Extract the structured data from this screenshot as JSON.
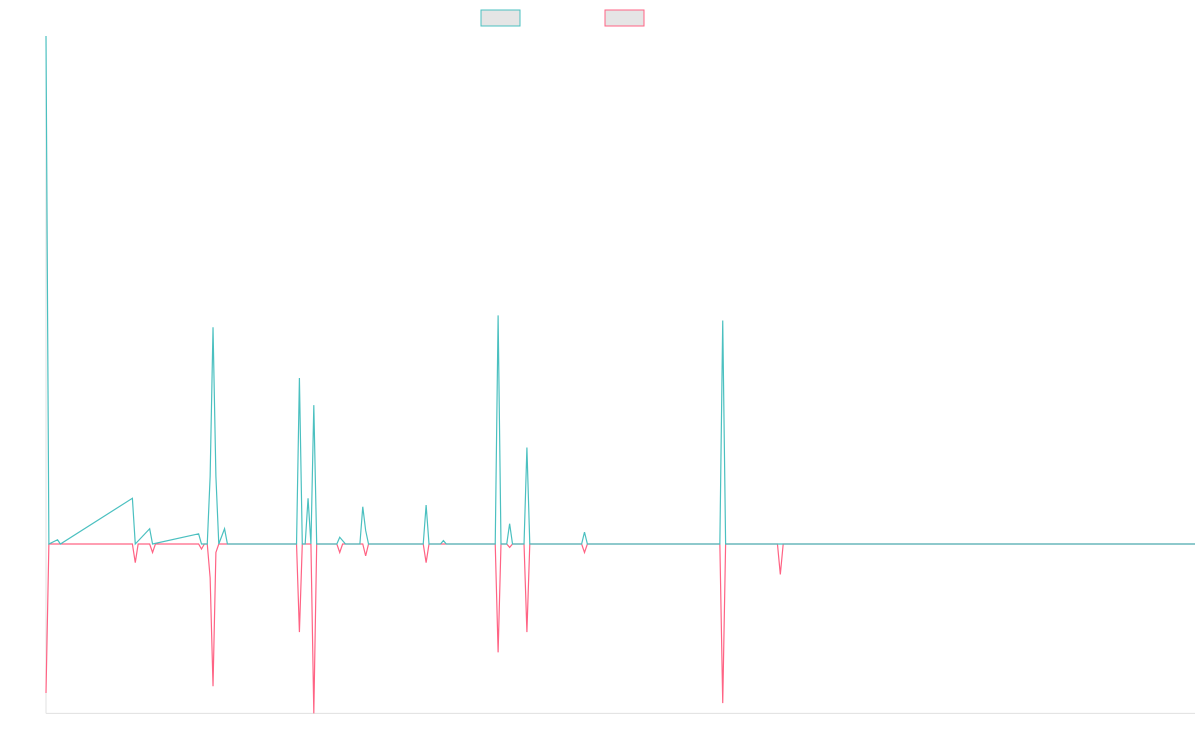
{
  "chart_data": {
    "type": "line",
    "title": "",
    "xlabel": "",
    "ylabel": "",
    "grid": false,
    "legend_position": "top-center",
    "x_count": 400,
    "ylim": [
      -1.0,
      3.0
    ],
    "colors": {
      "series_a": "#4bc0c0",
      "series_b": "#ff6384",
      "legend_fill": "#e5e5e5",
      "axis": "#e0e0e0"
    },
    "series": [
      {
        "points": [
          [
            0,
            3.0
          ],
          [
            1,
            0
          ],
          [
            4,
            0.025
          ],
          [
            5,
            0
          ],
          [
            30,
            0.27
          ],
          [
            31,
            0
          ],
          [
            36,
            0.09
          ],
          [
            37,
            0
          ],
          [
            53,
            0.06
          ],
          [
            54,
            0
          ],
          [
            56,
            0
          ],
          [
            57,
            0.4
          ],
          [
            58,
            1.28
          ],
          [
            59,
            0.4
          ],
          [
            60,
            0
          ],
          [
            62,
            0.09
          ],
          [
            63,
            0
          ],
          [
            87,
            0
          ],
          [
            88,
            0.98
          ],
          [
            89,
            0
          ],
          [
            90,
            0
          ],
          [
            91,
            0.27
          ],
          [
            92,
            0
          ],
          [
            93,
            0.82
          ],
          [
            94,
            0
          ],
          [
            101,
            0
          ],
          [
            102,
            0.04
          ],
          [
            103,
            0.02
          ],
          [
            104,
            0
          ],
          [
            109,
            0
          ],
          [
            110,
            0.22
          ],
          [
            111,
            0.08
          ],
          [
            112,
            0
          ],
          [
            131,
            0
          ],
          [
            132,
            0.23
          ],
          [
            133,
            0
          ],
          [
            137,
            0
          ],
          [
            138,
            0.02
          ],
          [
            139,
            0
          ],
          [
            156,
            0
          ],
          [
            157,
            1.35
          ],
          [
            158,
            0
          ],
          [
            160,
            0
          ],
          [
            161,
            0.12
          ],
          [
            162,
            0
          ],
          [
            166,
            0
          ],
          [
            167,
            0.57
          ],
          [
            168,
            0
          ],
          [
            186,
            0
          ],
          [
            187,
            0.07
          ],
          [
            188,
            0
          ],
          [
            234,
            0
          ],
          [
            235,
            1.32
          ],
          [
            236,
            0
          ],
          [
            399,
            0
          ]
        ]
      },
      {
        "points": [
          [
            0,
            -0.88
          ],
          [
            1,
            0
          ],
          [
            30,
            0
          ],
          [
            31,
            -0.11
          ],
          [
            32,
            0
          ],
          [
            36,
            0
          ],
          [
            37,
            -0.05
          ],
          [
            38,
            0
          ],
          [
            53,
            0
          ],
          [
            54,
            -0.03
          ],
          [
            55,
            0
          ],
          [
            56,
            0
          ],
          [
            57,
            -0.2
          ],
          [
            58,
            -0.84
          ],
          [
            59,
            -0.05
          ],
          [
            60,
            0
          ],
          [
            87,
            0
          ],
          [
            88,
            -0.52
          ],
          [
            89,
            0
          ],
          [
            92,
            0
          ],
          [
            93,
            -1.0
          ],
          [
            94,
            0
          ],
          [
            101,
            0
          ],
          [
            102,
            -0.05
          ],
          [
            103,
            0
          ],
          [
            110,
            0
          ],
          [
            111,
            -0.07
          ],
          [
            112,
            0
          ],
          [
            131,
            0
          ],
          [
            132,
            -0.11
          ],
          [
            133,
            0
          ],
          [
            156,
            0
          ],
          [
            157,
            -0.64
          ],
          [
            158,
            0
          ],
          [
            160,
            0
          ],
          [
            161,
            -0.02
          ],
          [
            162,
            0
          ],
          [
            166,
            0
          ],
          [
            167,
            -0.52
          ],
          [
            168,
            0
          ],
          [
            186,
            0
          ],
          [
            187,
            -0.05
          ],
          [
            188,
            0
          ],
          [
            234,
            0
          ],
          [
            235,
            -0.94
          ],
          [
            236,
            0
          ],
          [
            254,
            0
          ],
          [
            255,
            -0.18
          ],
          [
            256,
            0
          ],
          [
            399,
            0
          ]
        ]
      }
    ]
  }
}
